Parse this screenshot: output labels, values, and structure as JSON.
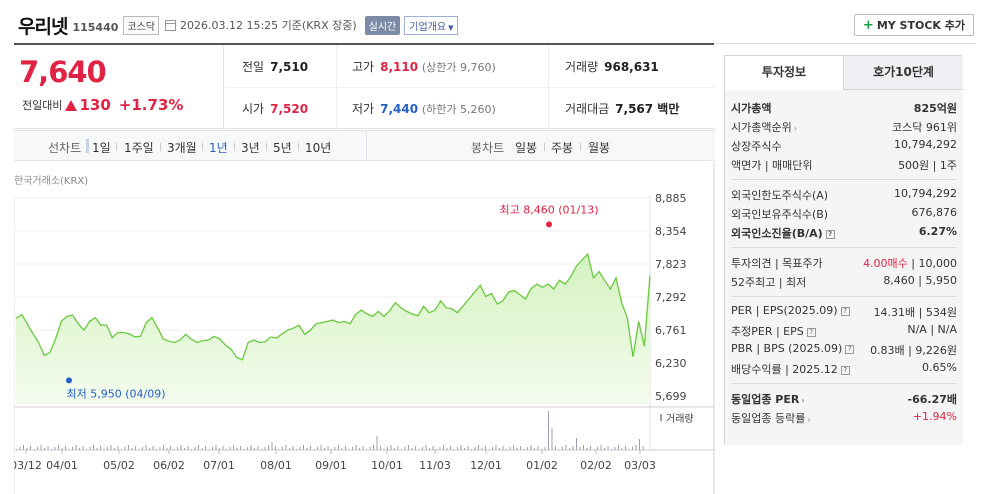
{
  "header": {
    "name": "우리넷",
    "code": "115440",
    "market": "코스닥",
    "datetime": "2026.03.12 15:25 기준(KRX 장중)",
    "realtime": "실시간",
    "company_info": "기업개요",
    "mystock": "MY STOCK 추가"
  },
  "price": {
    "current": "7,640",
    "change_label": "전일대비",
    "change": "130",
    "change_pct": "+1.73%"
  },
  "summary": {
    "prev_label": "전일",
    "prev": "7,510",
    "open_label": "시가",
    "open": "7,520",
    "high_label": "고가",
    "high": "8,110",
    "upper_limit": "(상한가 9,760)",
    "low_label": "저가",
    "low": "7,440",
    "lower_limit": "(하한가 5,260)",
    "volume_label": "거래량",
    "volume": "968,631",
    "amount_label": "거래대금",
    "amount": "7,567 백만"
  },
  "toolbar": {
    "line_label": "선차트",
    "periods": [
      "1일",
      "1주일",
      "3개월",
      "1년",
      "3년",
      "5년",
      "10년"
    ],
    "candle_label": "봉차트",
    "candles": [
      "일봉",
      "주봉",
      "월봉"
    ]
  },
  "chart": {
    "source": "한국거래소(KRX)",
    "high_label": "최고 8,460 (01/13)",
    "low_label": "최저 5,950 (04/09)",
    "volume_label": "거래량",
    "colors": {
      "line": "#69c93d",
      "fill_top": "#d4f2c0",
      "fill_bottom": "#f4fcee",
      "high": "#e12343",
      "low": "#2461c8"
    }
  },
  "chart_data": {
    "type": "area",
    "y_ticks": [
      "8,885",
      "8,354",
      "7,823",
      "7,292",
      "6,761",
      "6,230",
      "5,699"
    ],
    "ylim": [
      5699,
      8885
    ],
    "x_ticks": [
      "03/12",
      "04/01",
      "05/02",
      "06/02",
      "07/01",
      "08/01",
      "09/01",
      "10/01",
      "11/03",
      "12/01",
      "01/02",
      "02/02",
      "03/03"
    ],
    "values": [
      6950,
      7010,
      6860,
      6700,
      6560,
      6350,
      6400,
      6620,
      6900,
      6980,
      7000,
      6860,
      6760,
      6900,
      6960,
      6840,
      6840,
      6640,
      6720,
      6720,
      6700,
      6650,
      6660,
      6880,
      6960,
      6800,
      6620,
      6580,
      6560,
      6600,
      6690,
      6610,
      6560,
      6590,
      6600,
      6660,
      6620,
      6520,
      6450,
      6320,
      6280,
      6560,
      6600,
      6560,
      6570,
      6650,
      6630,
      6700,
      6760,
      6790,
      6840,
      6690,
      6760,
      6860,
      6880,
      6900,
      6920,
      6880,
      6900,
      6860,
      7010,
      7080,
      7020,
      6980,
      7060,
      6980,
      7070,
      7200,
      7120,
      7060,
      7020,
      6990,
      7140,
      7040,
      7080,
      7230,
      7120,
      7100,
      7040,
      7150,
      7260,
      7370,
      7480,
      7300,
      7350,
      7180,
      7230,
      7370,
      7400,
      7330,
      7260,
      7430,
      7500,
      7450,
      7500,
      7420,
      7560,
      7500,
      7620,
      7790,
      7890,
      7980,
      7600,
      7700,
      7560,
      7420,
      7600,
      7200,
      6950,
      6330,
      6900,
      6500,
      7640
    ],
    "high": {
      "value": 8460,
      "date": "01/13"
    },
    "low": {
      "value": 5950,
      "date": "04/09"
    }
  },
  "invest": {
    "tab_on": "투자정보",
    "tab_off": "호가10단계",
    "rows1": [
      {
        "k": "시가총액",
        "v": "825억원",
        "kb": true,
        "vb": true
      },
      {
        "k": "시가총액순위",
        "v": "코스닥 961위",
        "arrow": true
      },
      {
        "k": "상장주식수",
        "v": "10,794,292"
      },
      {
        "k": "액면가 | 매매단위",
        "v": "500원 | 1주"
      }
    ],
    "rows2": [
      {
        "k": "외국인한도주식수(A)",
        "v": "10,794,292"
      },
      {
        "k": "외국인보유주식수(B)",
        "v": "676,876"
      },
      {
        "k": "외국인소진율(B/A)",
        "v": "6.27%",
        "kb": true,
        "vb": true,
        "q": true
      }
    ],
    "rows3": [
      {
        "k": "투자의견 | 목표주가",
        "v_red": "4.00매수",
        "v": " | 10,000"
      },
      {
        "k": "52주최고 | 최저",
        "v": "8,460 | 5,950"
      }
    ],
    "rows4": [
      {
        "k": "PER | EPS(2025.09)",
        "v": "14.31배 | 534원",
        "q": true
      },
      {
        "k": "추정PER | EPS",
        "v": "N/A | N/A",
        "q": true
      },
      {
        "k": "PBR | BPS (2025.09)",
        "v": "0.83배 | 9,226원",
        "q": true
      },
      {
        "k": "배당수익률 | 2025.12",
        "v": "0.65%",
        "q": true
      }
    ],
    "rows5": [
      {
        "k": "동일업종 PER",
        "v": "-66.27배",
        "kb": true,
        "vb": true,
        "arrow": true
      },
      {
        "k": "동일업종 등락률",
        "v": "+1.94%",
        "red": true,
        "arrow": true
      }
    ]
  }
}
